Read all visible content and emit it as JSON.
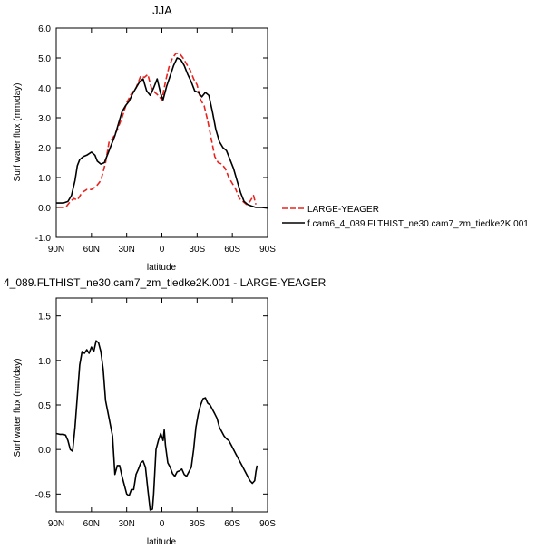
{
  "chart_data": [
    {
      "type": "line",
      "title": "JJA",
      "xlabel": "latitude",
      "ylabel": "Surf water flux (mm/day)",
      "xlim": [
        -90,
        90
      ],
      "ylim": [
        -1.0,
        6.0
      ],
      "x_ticks": [
        -90,
        -60,
        -30,
        0,
        30,
        60,
        90
      ],
      "x_tick_labels": [
        "90N",
        "60N",
        "30N",
        "0",
        "30S",
        "60S",
        "90S"
      ],
      "y_ticks": [
        -1,
        0,
        1,
        2,
        3,
        4,
        5,
        6
      ],
      "y_tick_labels": [
        "-1.0",
        "0.0",
        "1.0",
        "2.0",
        "3.0",
        "4.0",
        "5.0",
        "6.0"
      ],
      "grid": false,
      "legend_position": "right",
      "series": [
        {
          "name": "LARGE-YEAGER",
          "color": "#e8231f",
          "dash": true,
          "x": [
            -88,
            -82,
            -78,
            -75,
            -72,
            -68,
            -64,
            -60,
            -56,
            -52,
            -48,
            -45,
            -42,
            -38,
            -34,
            -30,
            -26,
            -22,
            -18,
            -15,
            -12,
            -9,
            -6,
            -3,
            0,
            3,
            6,
            9,
            12,
            15,
            18,
            21,
            24,
            27,
            30,
            33,
            36,
            39,
            42,
            45,
            48,
            51,
            54,
            57,
            60,
            63,
            66,
            69,
            72,
            75,
            78,
            80
          ],
          "y": [
            0.0,
            0.0,
            0.2,
            0.3,
            0.25,
            0.5,
            0.6,
            0.6,
            0.7,
            0.9,
            1.5,
            2.2,
            2.3,
            2.6,
            3.0,
            3.5,
            3.8,
            4.0,
            4.4,
            4.35,
            4.45,
            4.0,
            3.85,
            3.75,
            3.6,
            4.2,
            4.7,
            5.0,
            5.15,
            5.15,
            5.0,
            4.8,
            4.6,
            4.3,
            4.1,
            3.6,
            3.4,
            2.9,
            2.3,
            1.7,
            1.5,
            1.45,
            1.3,
            1.0,
            0.8,
            0.6,
            0.3,
            0.2,
            0.1,
            0.2,
            0.4,
            0.1
          ]
        },
        {
          "name": "f.cam6_4_089.FLTHIST_ne30.cam7_zm_tiedke2K.001",
          "color": "#000000",
          "dash": false,
          "x": [
            -90,
            -84,
            -80,
            -77,
            -74,
            -72,
            -70,
            -67,
            -64,
            -60,
            -57,
            -55,
            -52,
            -49,
            -46,
            -43,
            -40,
            -37,
            -34,
            -31,
            -28,
            -25,
            -22,
            -19,
            -16,
            -13,
            -10,
            -7,
            -4,
            -1,
            1,
            4,
            7,
            10,
            13,
            16,
            19,
            22,
            25,
            28,
            31,
            34,
            37,
            40,
            43,
            46,
            49,
            52,
            55,
            58,
            61,
            64,
            67,
            70,
            73,
            76,
            80,
            85,
            90
          ],
          "y": [
            0.15,
            0.15,
            0.2,
            0.4,
            0.9,
            1.4,
            1.6,
            1.7,
            1.75,
            1.85,
            1.75,
            1.55,
            1.45,
            1.5,
            1.8,
            2.1,
            2.4,
            2.8,
            3.2,
            3.4,
            3.55,
            3.8,
            4.0,
            4.2,
            4.3,
            3.9,
            3.75,
            4.0,
            4.3,
            3.8,
            3.6,
            4.05,
            4.4,
            4.75,
            5.0,
            4.95,
            4.75,
            4.45,
            4.2,
            3.9,
            3.85,
            3.7,
            3.85,
            3.75,
            3.2,
            2.6,
            2.2,
            2.0,
            1.9,
            1.6,
            1.3,
            0.9,
            0.5,
            0.2,
            0.1,
            0.05,
            0.0,
            0.0,
            -0.02
          ]
        }
      ]
    },
    {
      "type": "line",
      "title": "4_089.FLTHIST_ne30.cam7_zm_tiedke2K.001 - LARGE-YEAGER",
      "xlabel": "latitude",
      "ylabel": "Surf water flux (mm/day)",
      "xlim": [
        -90,
        90
      ],
      "ylim": [
        -0.7,
        1.7
      ],
      "x_ticks": [
        -90,
        -60,
        -30,
        0,
        30,
        60,
        90
      ],
      "x_tick_labels": [
        "90N",
        "60N",
        "30N",
        "0",
        "30S",
        "60S",
        "90S"
      ],
      "y_ticks": [
        -0.5,
        0.0,
        0.5,
        1.0,
        1.5
      ],
      "y_tick_labels": [
        "-0.5",
        "0.0",
        "0.5",
        "1.0",
        "1.5"
      ],
      "grid": false,
      "series": [
        {
          "color": "#000000",
          "x": [
            -90,
            -87,
            -84,
            -82,
            -80,
            -78,
            -76,
            -74,
            -72,
            -70,
            -68,
            -66,
            -64,
            -62,
            -60,
            -58,
            -56,
            -54,
            -52,
            -50,
            -48,
            -45,
            -42,
            -40,
            -38,
            -36,
            -34,
            -32,
            -30,
            -28,
            -26,
            -24,
            -22,
            -20,
            -18,
            -16,
            -14,
            -12,
            -10,
            -8,
            -7,
            -6,
            -5,
            -3,
            -1,
            1,
            2,
            3,
            5,
            7,
            9,
            11,
            13,
            15,
            17,
            19,
            21,
            23,
            25,
            27,
            29,
            31,
            33,
            35,
            37,
            39,
            41,
            43,
            45,
            47,
            49,
            51,
            53,
            55,
            57,
            59,
            61,
            63,
            65,
            67,
            69,
            71,
            73,
            75,
            77,
            79,
            80,
            81
          ],
          "y": [
            0.18,
            0.17,
            0.17,
            0.16,
            0.1,
            0.0,
            -0.02,
            0.25,
            0.6,
            0.95,
            1.1,
            1.08,
            1.12,
            1.08,
            1.15,
            1.1,
            1.22,
            1.2,
            1.1,
            0.9,
            0.55,
            0.35,
            0.15,
            -0.28,
            -0.18,
            -0.18,
            -0.3,
            -0.4,
            -0.5,
            -0.52,
            -0.45,
            -0.45,
            -0.28,
            -0.22,
            -0.15,
            -0.13,
            -0.2,
            -0.45,
            -0.68,
            -0.67,
            -0.5,
            -0.25,
            0.0,
            0.1,
            0.18,
            0.1,
            0.22,
            0.05,
            -0.15,
            -0.2,
            -0.27,
            -0.3,
            -0.25,
            -0.24,
            -0.22,
            -0.28,
            -0.3,
            -0.25,
            -0.2,
            0.0,
            0.25,
            0.4,
            0.5,
            0.57,
            0.58,
            0.52,
            0.5,
            0.45,
            0.4,
            0.35,
            0.25,
            0.2,
            0.15,
            0.12,
            0.1,
            0.05,
            0.0,
            -0.05,
            -0.1,
            -0.15,
            -0.2,
            -0.25,
            -0.3,
            -0.35,
            -0.38,
            -0.35,
            -0.25,
            -0.18
          ]
        }
      ]
    }
  ]
}
